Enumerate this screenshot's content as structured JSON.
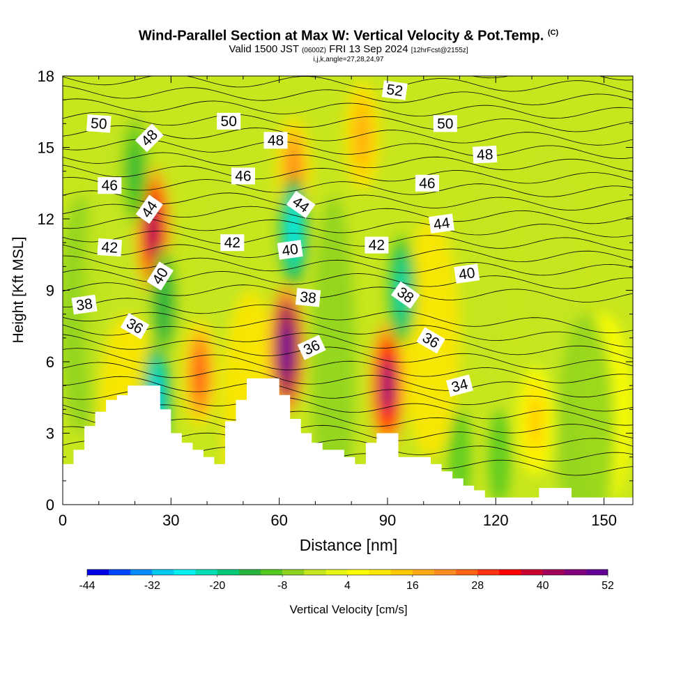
{
  "title": {
    "main": "Wind-Parallel Section at Max W: Vertical Velocity & Pot.Temp.",
    "copyright": "(C)",
    "valid_prefix": "Valid 1500 JST",
    "valid_utc": "(0600Z)",
    "valid_date": "FRI 13 Sep 2024",
    "forecast": "[12hrFcst@2155z]",
    "grid_info": "i,j,k,angle=27,28,24,97"
  },
  "chart_data": {
    "type": "heatmap",
    "xlabel": "Distance [nm]",
    "ylabel": "Height [Kft MSL]",
    "xlim": [
      0,
      158
    ],
    "ylim": [
      0,
      18
    ],
    "x_ticks": [
      0,
      30,
      60,
      90,
      120,
      150
    ],
    "y_ticks": [
      0,
      3,
      6,
      9,
      12,
      15,
      18
    ],
    "colorbar": {
      "label": "Vertical Velocity [cm/s]",
      "tick_labels": [
        "-44",
        "-32",
        "-20",
        "-8",
        "4",
        "16",
        "28",
        "40",
        "52"
      ],
      "colors": [
        "#0000e6",
        "#0047ff",
        "#008cff",
        "#00c8f0",
        "#00f0f0",
        "#00dcb4",
        "#00c878",
        "#28b43c",
        "#50c81e",
        "#8cd21e",
        "#c3e61e",
        "#e6f514",
        "#ffff00",
        "#ffe600",
        "#ffc800",
        "#ffaa14",
        "#ff8c1e",
        "#ff6414",
        "#ff3214",
        "#ff0000",
        "#c80032",
        "#a0005a",
        "#82007d",
        "#640096"
      ]
    },
    "updrafts_cm_s": [
      {
        "x": 25,
        "y": 11.5,
        "value": 42
      },
      {
        "x": 38,
        "y": 5.5,
        "value": 26
      },
      {
        "x": 62,
        "y": 6.5,
        "value": 52
      },
      {
        "x": 64,
        "y": 14.0,
        "value": 22
      },
      {
        "x": 90,
        "y": 5.0,
        "value": 44
      },
      {
        "x": 83,
        "y": 15.5,
        "value": 18
      },
      {
        "x": 131,
        "y": 3.5,
        "value": 14
      }
    ],
    "downdrafts_cm_s": [
      {
        "x": 26,
        "y": 4.5,
        "value": -30
      },
      {
        "x": 64,
        "y": 11.5,
        "value": -28
      },
      {
        "x": 94,
        "y": 9.0,
        "value": -22
      },
      {
        "x": 28,
        "y": 8.5,
        "value": -16
      },
      {
        "x": 20,
        "y": 14.0,
        "value": -14
      }
    ],
    "theta_contour_labels": [
      {
        "text": "50",
        "x": 10,
        "y": 16.0,
        "angle": 4
      },
      {
        "text": "50",
        "x": 46,
        "y": 16.1,
        "angle": 0
      },
      {
        "text": "50",
        "x": 106,
        "y": 16.0,
        "angle": 0
      },
      {
        "text": "52",
        "x": 92,
        "y": 17.4,
        "angle": 8
      },
      {
        "text": "48",
        "x": 24,
        "y": 15.4,
        "angle": -45
      },
      {
        "text": "48",
        "x": 59,
        "y": 15.3,
        "angle": 0
      },
      {
        "text": "48",
        "x": 117,
        "y": 14.7,
        "angle": -3
      },
      {
        "text": "46",
        "x": 13,
        "y": 13.4,
        "angle": 0
      },
      {
        "text": "46",
        "x": 50,
        "y": 13.8,
        "angle": 0
      },
      {
        "text": "46",
        "x": 101,
        "y": 13.5,
        "angle": 0
      },
      {
        "text": "44",
        "x": 24,
        "y": 12.4,
        "angle": -55
      },
      {
        "text": "44",
        "x": 66,
        "y": 12.6,
        "angle": 35
      },
      {
        "text": "44",
        "x": 105,
        "y": 11.8,
        "angle": -8
      },
      {
        "text": "42",
        "x": 13,
        "y": 10.8,
        "angle": 4
      },
      {
        "text": "42",
        "x": 47,
        "y": 11.0,
        "angle": 0
      },
      {
        "text": "42",
        "x": 87,
        "y": 10.9,
        "angle": 0
      },
      {
        "text": "40",
        "x": 27,
        "y": 9.6,
        "angle": -58
      },
      {
        "text": "40",
        "x": 63,
        "y": 10.7,
        "angle": -8
      },
      {
        "text": "40",
        "x": 112,
        "y": 9.7,
        "angle": -8
      },
      {
        "text": "38",
        "x": 6,
        "y": 8.4,
        "angle": -8
      },
      {
        "text": "38",
        "x": 68,
        "y": 8.7,
        "angle": 6
      },
      {
        "text": "38",
        "x": 95,
        "y": 8.8,
        "angle": 35
      },
      {
        "text": "36",
        "x": 20,
        "y": 7.5,
        "angle": 30
      },
      {
        "text": "36",
        "x": 69,
        "y": 6.6,
        "angle": -25
      },
      {
        "text": "36",
        "x": 102,
        "y": 6.9,
        "angle": 30
      },
      {
        "text": "34",
        "x": 110,
        "y": 5.0,
        "angle": -15
      }
    ],
    "terrain_kft": {
      "x": [
        0,
        3,
        6,
        9,
        12,
        15,
        18,
        21,
        24,
        27,
        30,
        33,
        36,
        39,
        42,
        45,
        48,
        51,
        54,
        57,
        60,
        63,
        66,
        69,
        72,
        75,
        78,
        81,
        84,
        87,
        90,
        93,
        96,
        99,
        102,
        105,
        108,
        111,
        114,
        117,
        120,
        123,
        126,
        129,
        132,
        135,
        138,
        141,
        144,
        147,
        150,
        153,
        156,
        158
      ],
      "height": [
        1.7,
        2.3,
        3.3,
        3.9,
        4.4,
        4.6,
        5.0,
        5.0,
        5.0,
        4.0,
        3.0,
        2.6,
        2.3,
        2.0,
        1.7,
        3.5,
        4.4,
        5.3,
        5.3,
        5.3,
        4.6,
        3.6,
        3.0,
        2.6,
        2.3,
        2.3,
        2.0,
        1.7,
        2.6,
        3.0,
        3.0,
        2.0,
        2.0,
        2.0,
        1.7,
        1.4,
        1.1,
        0.8,
        0.6,
        0.3,
        0.3,
        0.3,
        0.3,
        0.3,
        0.7,
        0.7,
        0.7,
        0.3,
        0.3,
        0.3,
        0.3,
        0.3,
        0.3,
        0.3
      ]
    }
  }
}
